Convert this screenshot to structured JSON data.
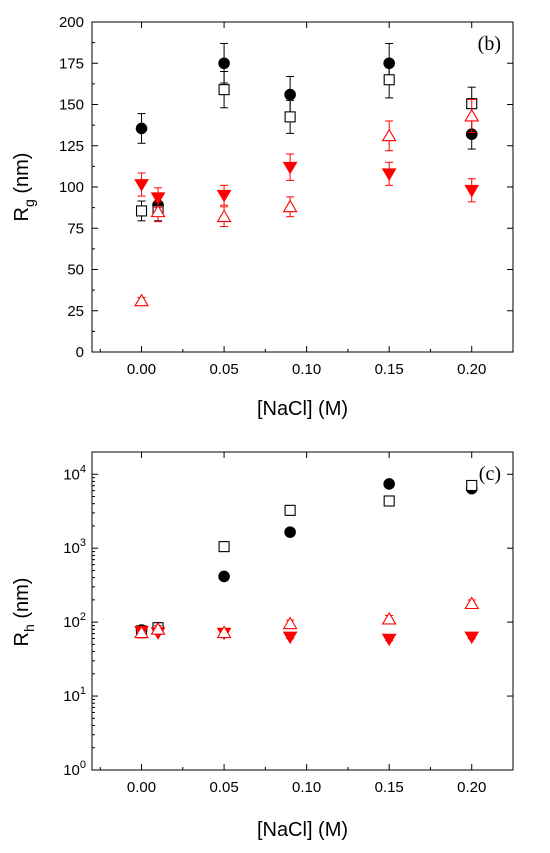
{
  "chart_data": [
    {
      "type": "scatter",
      "panel_label": "(b)",
      "xlabel": "[NaCl] (M)",
      "ylabel_main": "R",
      "ylabel_sub": "g",
      "ylabel_unit": " (nm)",
      "xlim": [
        -0.03,
        0.225
      ],
      "ylim": [
        0,
        200
      ],
      "xticks": [
        0.0,
        0.05,
        0.1,
        0.15,
        0.2
      ],
      "xtick_labels": [
        "0.00",
        "0.05",
        "0.10",
        "0.15",
        "0.20"
      ],
      "yticks": [
        0,
        25,
        50,
        75,
        100,
        125,
        150,
        175,
        200
      ],
      "ytick_labels": [
        "0",
        "25",
        "50",
        "75",
        "100",
        "125",
        "150",
        "175",
        "200"
      ],
      "y_scale": "linear",
      "series": [
        {
          "marker": "circle",
          "filled": true,
          "color": "#000000",
          "points": [
            {
              "x": 0.0,
              "y": 135.5,
              "err": 9
            },
            {
              "x": 0.01,
              "y": 89,
              "err": 6
            },
            {
              "x": 0.05,
              "y": 175,
              "err": 12
            },
            {
              "x": 0.09,
              "y": 156,
              "err": 11
            },
            {
              "x": 0.15,
              "y": 175,
              "err": 12
            },
            {
              "x": 0.2,
              "y": 132,
              "err": 9
            }
          ]
        },
        {
          "marker": "square",
          "filled": false,
          "color": "#000000",
          "points": [
            {
              "x": 0.0,
              "y": 85.5,
              "err": 6
            },
            {
              "x": 0.01,
              "y": 85.5,
              "err": 6
            },
            {
              "x": 0.05,
              "y": 159,
              "err": 11
            },
            {
              "x": 0.09,
              "y": 142.5,
              "err": 10
            },
            {
              "x": 0.15,
              "y": 165,
              "err": 11
            },
            {
              "x": 0.2,
              "y": 150.5,
              "err": 10
            }
          ]
        },
        {
          "marker": "triangle-down",
          "filled": true,
          "color": "#ff0000",
          "points": [
            {
              "x": 0.0,
              "y": 101.5,
              "err": 7
            },
            {
              "x": 0.01,
              "y": 93.5,
              "err": 6
            },
            {
              "x": 0.05,
              "y": 95,
              "err": 6
            },
            {
              "x": 0.09,
              "y": 112,
              "err": 8
            },
            {
              "x": 0.15,
              "y": 108,
              "err": 7
            },
            {
              "x": 0.2,
              "y": 98,
              "err": 7
            }
          ]
        },
        {
          "marker": "triangle-up",
          "filled": false,
          "color": "#ff0000",
          "points": [
            {
              "x": 0.0,
              "y": 31,
              "err": 2
            },
            {
              "x": 0.01,
              "y": 85,
              "err": 6
            },
            {
              "x": 0.05,
              "y": 82,
              "err": 6
            },
            {
              "x": 0.09,
              "y": 88,
              "err": 6
            },
            {
              "x": 0.15,
              "y": 131,
              "err": 9
            },
            {
              "x": 0.2,
              "y": 143,
              "err": 10
            }
          ]
        }
      ]
    },
    {
      "type": "scatter",
      "panel_label": "(c)",
      "xlabel": "[NaCl] (M)",
      "ylabel_main": "R",
      "ylabel_sub": "h",
      "ylabel_unit": " (nm)",
      "xlim": [
        -0.03,
        0.225
      ],
      "ylim": [
        1,
        20000
      ],
      "xticks": [
        0.0,
        0.05,
        0.1,
        0.15,
        0.2
      ],
      "xtick_labels": [
        "0.00",
        "0.05",
        "0.10",
        "0.15",
        "0.20"
      ],
      "yticks": [
        1,
        10,
        100,
        1000,
        10000
      ],
      "ytick_labels": [
        {
          "base": "10",
          "exp": "0"
        },
        {
          "base": "10",
          "exp": "1"
        },
        {
          "base": "10",
          "exp": "2"
        },
        {
          "base": "10",
          "exp": "3"
        },
        {
          "base": "10",
          "exp": "4"
        }
      ],
      "y_scale": "log",
      "series": [
        {
          "marker": "circle",
          "filled": true,
          "color": "#000000",
          "points": [
            {
              "x": 0.0,
              "y": 78,
              "err_frac": 0.08
            },
            {
              "x": 0.01,
              "y": 84,
              "err_frac": 0.08
            },
            {
              "x": 0.05,
              "y": 415,
              "err_frac": 0.0
            },
            {
              "x": 0.09,
              "y": 1650,
              "err_frac": 0.0
            },
            {
              "x": 0.15,
              "y": 7400,
              "err_frac": 0.0
            },
            {
              "x": 0.2,
              "y": 6400,
              "err_frac": 0.0
            }
          ]
        },
        {
          "marker": "square",
          "filled": false,
          "color": "#000000",
          "points": [
            {
              "x": 0.0,
              "y": 76,
              "err_frac": 0.1
            },
            {
              "x": 0.01,
              "y": 84,
              "err_frac": 0.1
            },
            {
              "x": 0.05,
              "y": 1050,
              "err_frac": 0.1
            },
            {
              "x": 0.09,
              "y": 3250,
              "err_frac": 0.1
            },
            {
              "x": 0.15,
              "y": 4350,
              "err_frac": 0.1
            },
            {
              "x": 0.2,
              "y": 7050,
              "err_frac": 0.1
            }
          ]
        },
        {
          "marker": "triangle-down",
          "filled": true,
          "color": "#ff0000",
          "points": [
            {
              "x": 0.0,
              "y": 75,
              "err_frac": 0.05
            },
            {
              "x": 0.01,
              "y": 72,
              "err_frac": 0.05
            },
            {
              "x": 0.05,
              "y": 71,
              "err_frac": 0.05
            },
            {
              "x": 0.09,
              "y": 63,
              "err_frac": 0.05
            },
            {
              "x": 0.15,
              "y": 59,
              "err_frac": 0.05
            },
            {
              "x": 0.2,
              "y": 63,
              "err_frac": 0.05
            }
          ]
        },
        {
          "marker": "triangle-up",
          "filled": false,
          "color": "#ff0000",
          "points": [
            {
              "x": 0.0,
              "y": 72,
              "err_frac": 0.15
            },
            {
              "x": 0.01,
              "y": 80,
              "err_frac": 0.12
            },
            {
              "x": 0.05,
              "y": 72,
              "err_frac": 0.1
            },
            {
              "x": 0.09,
              "y": 95,
              "err_frac": 0.12
            },
            {
              "x": 0.15,
              "y": 110,
              "err_frac": 0.12
            },
            {
              "x": 0.2,
              "y": 178,
              "err_frac": 0.12
            }
          ]
        }
      ]
    }
  ]
}
